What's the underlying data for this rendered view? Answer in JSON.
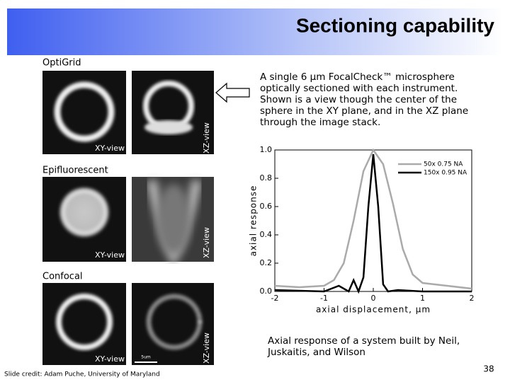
{
  "header": {
    "title": "Sectioning capability"
  },
  "panels": [
    {
      "label": "OptiGrid",
      "views": [
        "XY-view",
        "XZ-view"
      ]
    },
    {
      "label": "Epifluorescent",
      "views": [
        "XY-view",
        "XZ-view"
      ]
    },
    {
      "label": "Confocal",
      "views": [
        "XY-view",
        "XZ-view"
      ],
      "scale_bar": "5um"
    }
  ],
  "description": "A single 6 µm FocalCheck™ microsphere optically sectioned with each instrument. Shown is a view though the center of the sphere in the XY plane, and in the XZ plane through the image stack.",
  "chart_data": {
    "type": "line",
    "xlabel": "axial displacement, µm",
    "ylabel": "axial response",
    "xlim": [
      -2,
      2
    ],
    "ylim": [
      0,
      1
    ],
    "xticks": [
      -2,
      -1,
      0,
      1,
      2
    ],
    "yticks": [
      {
        "value": 0,
        "label": "0.0"
      },
      0.2,
      0.4,
      0.6,
      0.8,
      {
        "value": 1,
        "label": "1.0"
      }
    ],
    "series": [
      {
        "name": "50x 0.75 NA",
        "color": "#aaaaaa",
        "x": [
          -2,
          -1.5,
          -1,
          -0.8,
          -0.6,
          -0.4,
          -0.2,
          0,
          0.2,
          0.4,
          0.6,
          0.8,
          1,
          1.5,
          2
        ],
        "values": [
          0.04,
          0.03,
          0.04,
          0.08,
          0.2,
          0.5,
          0.85,
          1.0,
          0.9,
          0.62,
          0.3,
          0.12,
          0.06,
          0.04,
          0.02
        ]
      },
      {
        "name": "150x 0.95 NA",
        "color": "#000000",
        "x": [
          -2,
          -1,
          -0.7,
          -0.5,
          -0.4,
          -0.3,
          -0.2,
          -0.1,
          0,
          0.1,
          0.2,
          0.3,
          0.5,
          1,
          2
        ],
        "values": [
          0.01,
          0.0,
          0.04,
          0.0,
          0.08,
          0.0,
          0.1,
          0.6,
          0.97,
          0.6,
          0.05,
          0.0,
          0.01,
          0.0,
          0.0
        ]
      }
    ],
    "legend": "upper right"
  },
  "caption": "Axial response of a system built by Neil, Juskaitis, and Wilson",
  "footer": {
    "credit": "Slide credit: Adam Puche, University of Maryland",
    "page": "38"
  }
}
